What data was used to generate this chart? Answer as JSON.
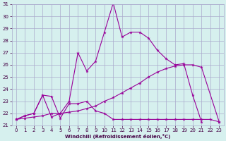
{
  "xlabel": "Windchill (Refroidissement éolien,°C)",
  "x": [
    0,
    1,
    2,
    3,
    4,
    5,
    6,
    7,
    8,
    9,
    10,
    11,
    12,
    13,
    14,
    15,
    16,
    17,
    18,
    19,
    20,
    21,
    22,
    23
  ],
  "line1": [
    21.5,
    21.8,
    22.0,
    23.5,
    21.7,
    22.0,
    23.0,
    27.0,
    25.5,
    26.3,
    28.7,
    31.1,
    28.3,
    28.7,
    28.7,
    28.2,
    27.2,
    26.5,
    26.0,
    26.1,
    23.5,
    21.3
  ],
  "line1_x": [
    0,
    1,
    2,
    3,
    4,
    5,
    6,
    7,
    8,
    9,
    10,
    11,
    12,
    13,
    14,
    15,
    16,
    17,
    18,
    19,
    20,
    21
  ],
  "line2": [
    21.5,
    21.6,
    21.7,
    21.8,
    22.0,
    22.0,
    22.1,
    22.2,
    22.4,
    22.6,
    23.0,
    23.3,
    23.7,
    24.1,
    24.5,
    25.0,
    25.4,
    25.7,
    25.9,
    26.0,
    26.0,
    25.8,
    21.3
  ],
  "line2_x": [
    0,
    1,
    2,
    3,
    4,
    5,
    6,
    7,
    8,
    9,
    10,
    11,
    12,
    13,
    14,
    15,
    16,
    17,
    18,
    19,
    20,
    21,
    23
  ],
  "line3": [
    21.5,
    21.8,
    22.0,
    23.5,
    23.4,
    21.6,
    22.8,
    22.8,
    23.0,
    22.2,
    22.0,
    21.5,
    21.5,
    21.5,
    21.5,
    21.5,
    21.5,
    21.5,
    21.5,
    21.5,
    21.5,
    21.5,
    21.5,
    21.3
  ],
  "line3_x": [
    0,
    1,
    2,
    3,
    4,
    5,
    6,
    7,
    8,
    9,
    10,
    11,
    12,
    13,
    14,
    15,
    16,
    17,
    18,
    19,
    20,
    21,
    22,
    23
  ],
  "ylim": [
    21,
    31
  ],
  "yticks": [
    21,
    22,
    23,
    24,
    25,
    26,
    27,
    28,
    29,
    30,
    31
  ],
  "xticks": [
    0,
    1,
    2,
    3,
    4,
    5,
    6,
    7,
    8,
    9,
    10,
    11,
    12,
    13,
    14,
    15,
    16,
    17,
    18,
    19,
    20,
    21,
    22,
    23
  ],
  "line_color": "#990099",
  "bg_color": "#d6f0ee",
  "grid_color": "#aaaacc",
  "tick_color": "#440044"
}
